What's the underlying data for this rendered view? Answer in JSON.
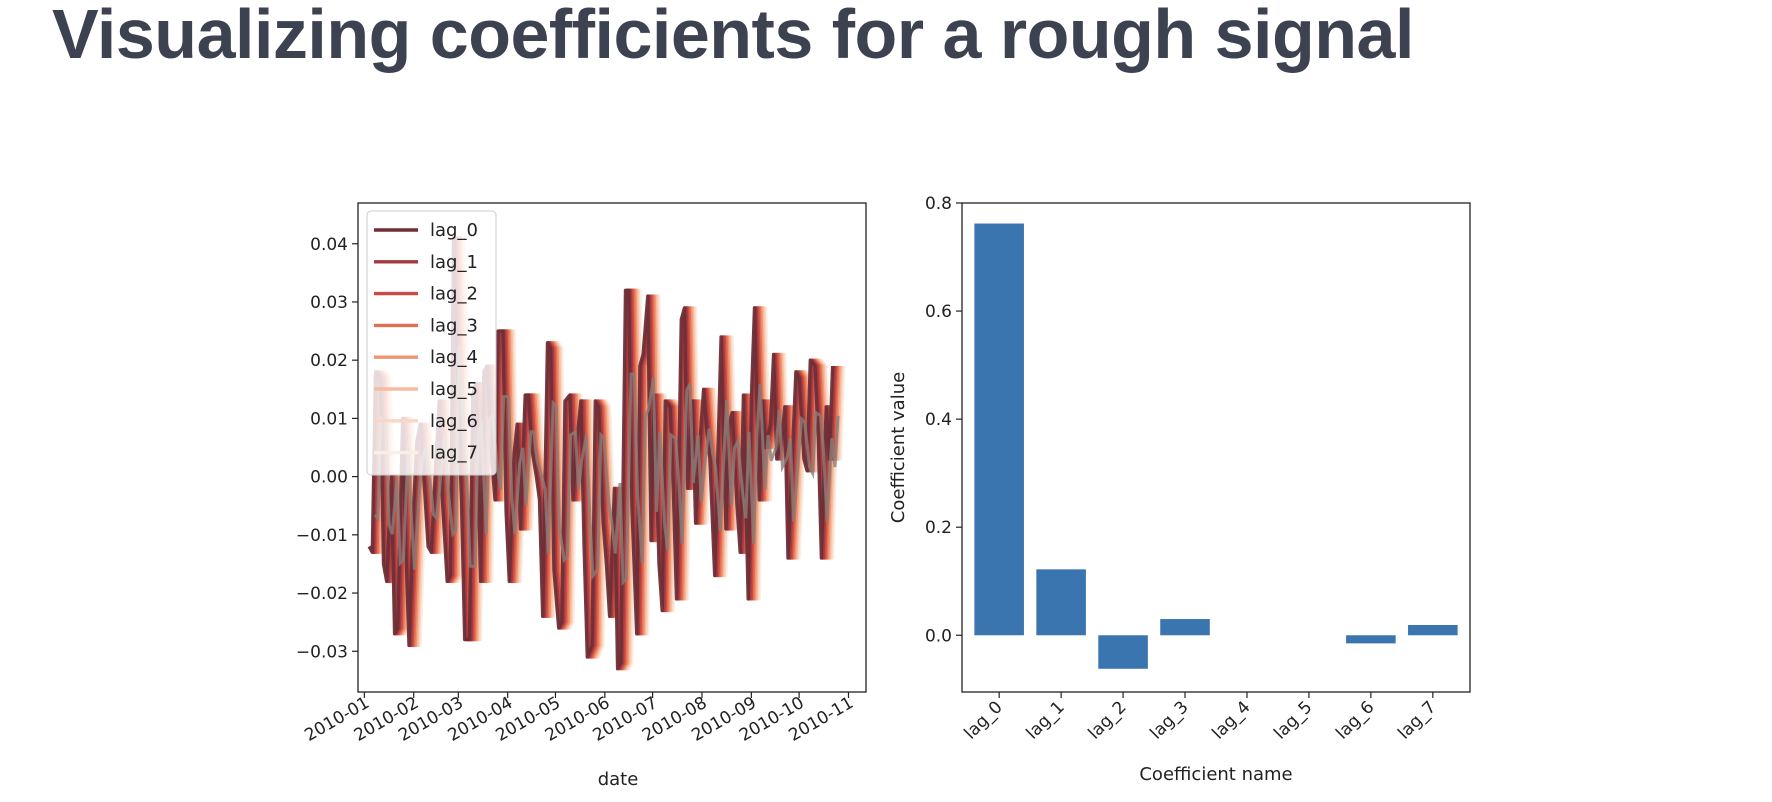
{
  "slide": {
    "title": "Visualizing coefficients for a rough signal"
  },
  "colors": {
    "title": "#3d4251",
    "bar": "#3a75b0",
    "axis": "#222222"
  },
  "chart_data": [
    {
      "type": "line",
      "xlabel": "date",
      "ylabel": "",
      "x_ticks": [
        "2010-01",
        "2010-02",
        "2010-03",
        "2010-04",
        "2010-05",
        "2010-06",
        "2010-07",
        "2010-08",
        "2010-09",
        "2010-10",
        "2010-11"
      ],
      "y_ticks": [
        "0.04",
        "0.03",
        "0.02",
        "0.01",
        "0.00",
        "−0.01",
        "−0.02",
        "−0.03"
      ],
      "y_tick_values": [
        0.04,
        0.03,
        0.02,
        0.01,
        0.0,
        -0.01,
        -0.02,
        -0.03
      ],
      "xlim": [
        "2009-12-28",
        "2010-11-12"
      ],
      "ylim": [
        -0.037,
        0.047
      ],
      "legend_position": "upper-left",
      "series_colors": [
        "#6e2e37",
        "#a13a3f",
        "#cc4a45",
        "#e36f50",
        "#f0956e",
        "#f6bba0",
        "#f9d7c4",
        "#fbeee4"
      ],
      "series": [
        {
          "name": "lag_0",
          "lag": 0
        },
        {
          "name": "lag_1",
          "lag": 1
        },
        {
          "name": "lag_2",
          "lag": 2
        },
        {
          "name": "lag_3",
          "lag": 3
        },
        {
          "name": "lag_4",
          "lag": 4
        },
        {
          "name": "lag_5",
          "lag": 5
        },
        {
          "name": "lag_6",
          "lag": 6
        },
        {
          "name": "lag_7",
          "lag": 7
        }
      ],
      "base_x": [
        "2010-01-04",
        "2010-01-06",
        "2010-01-08",
        "2010-01-11",
        "2010-01-13",
        "2010-01-15",
        "2010-01-18",
        "2010-01-20",
        "2010-01-22",
        "2010-01-25",
        "2010-01-27",
        "2010-01-29",
        "2010-02-01",
        "2010-02-03",
        "2010-02-05",
        "2010-02-08",
        "2010-02-10",
        "2010-02-12",
        "2010-02-15",
        "2010-02-17",
        "2010-02-19",
        "2010-02-22",
        "2010-02-24",
        "2010-02-26",
        "2010-03-01",
        "2010-03-03",
        "2010-03-05",
        "2010-03-08",
        "2010-03-10",
        "2010-03-12",
        "2010-03-15",
        "2010-03-17",
        "2010-03-19",
        "2010-03-22",
        "2010-03-24",
        "2010-03-26",
        "2010-03-29",
        "2010-03-31",
        "2010-04-02",
        "2010-04-05",
        "2010-04-07",
        "2010-04-09",
        "2010-04-12",
        "2010-04-14",
        "2010-04-16",
        "2010-04-19",
        "2010-04-21",
        "2010-04-23",
        "2010-04-26",
        "2010-04-28",
        "2010-04-30",
        "2010-05-03",
        "2010-05-05",
        "2010-05-07",
        "2010-05-10",
        "2010-05-12",
        "2010-05-14",
        "2010-05-17",
        "2010-05-19",
        "2010-05-21",
        "2010-05-24",
        "2010-05-26",
        "2010-05-28",
        "2010-05-31",
        "2010-06-02",
        "2010-06-04",
        "2010-06-07",
        "2010-06-09",
        "2010-06-11",
        "2010-06-14",
        "2010-06-16",
        "2010-06-18",
        "2010-06-21",
        "2010-06-23",
        "2010-06-25",
        "2010-06-28",
        "2010-06-30",
        "2010-07-02",
        "2010-07-05",
        "2010-07-07",
        "2010-07-09",
        "2010-07-12",
        "2010-07-14",
        "2010-07-16",
        "2010-07-19",
        "2010-07-21",
        "2010-07-23",
        "2010-07-26",
        "2010-07-28",
        "2010-07-30",
        "2010-08-02",
        "2010-08-04",
        "2010-08-06",
        "2010-08-09",
        "2010-08-11",
        "2010-08-13",
        "2010-08-16",
        "2010-08-18",
        "2010-08-20",
        "2010-08-23",
        "2010-08-25",
        "2010-08-27",
        "2010-08-30",
        "2010-09-01",
        "2010-09-03",
        "2010-09-06",
        "2010-09-08",
        "2010-09-10",
        "2010-09-13",
        "2010-09-15",
        "2010-09-17",
        "2010-09-20",
        "2010-09-22",
        "2010-09-24",
        "2010-09-27",
        "2010-09-29",
        "2010-10-01",
        "2010-10-04",
        "2010-10-06",
        "2010-10-08",
        "2010-10-11",
        "2010-10-13",
        "2010-10-15",
        "2010-10-18",
        "2010-10-20",
        "2010-10-22"
      ],
      "base_y": [
        -0.012,
        -0.013,
        0.018,
        0.017,
        -0.015,
        -0.018,
        0.0,
        -0.027,
        -0.026,
        0.01,
        -0.012,
        -0.029,
        -0.005,
        0.006,
        0.009,
        -0.003,
        -0.012,
        -0.013,
        0.003,
        0.013,
        -0.004,
        -0.018,
        -0.017,
        0.041,
        0.012,
        -0.004,
        -0.028,
        -0.028,
        0.014,
        0.016,
        -0.018,
        0.018,
        0.019,
        0.003,
        -0.004,
        0.025,
        0.025,
        -0.006,
        -0.018,
        0.004,
        0.009,
        -0.009,
        0.014,
        0.014,
        0.005,
        0.0,
        -0.004,
        -0.024,
        0.023,
        0.022,
        -0.016,
        -0.026,
        -0.025,
        0.013,
        0.014,
        -0.004,
        0.005,
        0.013,
        -0.012,
        -0.031,
        -0.029,
        0.013,
        0.012,
        -0.008,
        -0.015,
        -0.024,
        -0.002,
        -0.033,
        -0.032,
        0.032,
        0.032,
        -0.005,
        -0.027,
        0.019,
        0.021,
        0.031,
        -0.011,
        0.014,
        -0.015,
        -0.023,
        0.013,
        0.012,
        -0.002,
        -0.021,
        0.027,
        0.029,
        -0.002,
        0.013,
        -0.008,
        0.003,
        0.015,
        0.008,
        0.003,
        -0.017,
        0.004,
        0.024,
        -0.009,
        0.009,
        0.011,
        -0.005,
        -0.013,
        0.014,
        -0.021,
        0.013,
        0.029,
        -0.004,
        0.013,
        0.005,
        0.009,
        0.021,
        0.003,
        0.006,
        0.012,
        -0.014,
        0.005,
        0.018,
        0.017,
        0.003,
        0.001,
        0.02,
        0.019,
        0.007,
        -0.014,
        0.012,
        0.003,
        0.019
      ]
    },
    {
      "type": "bar",
      "xlabel": "Coefficient name",
      "ylabel": "Coefficient value",
      "categories": [
        "lag_0",
        "lag_1",
        "lag_2",
        "lag_3",
        "lag_4",
        "lag_5",
        "lag_6",
        "lag_7"
      ],
      "values": [
        0.762,
        0.122,
        -0.062,
        0.03,
        0.0,
        0.0,
        -0.015,
        0.019
      ],
      "y_ticks": [
        "0.8",
        "0.6",
        "0.4",
        "0.2",
        "0.0"
      ],
      "y_tick_values": [
        0.8,
        0.6,
        0.4,
        0.2,
        0.0
      ],
      "ylim": [
        -0.105,
        0.8
      ]
    }
  ]
}
